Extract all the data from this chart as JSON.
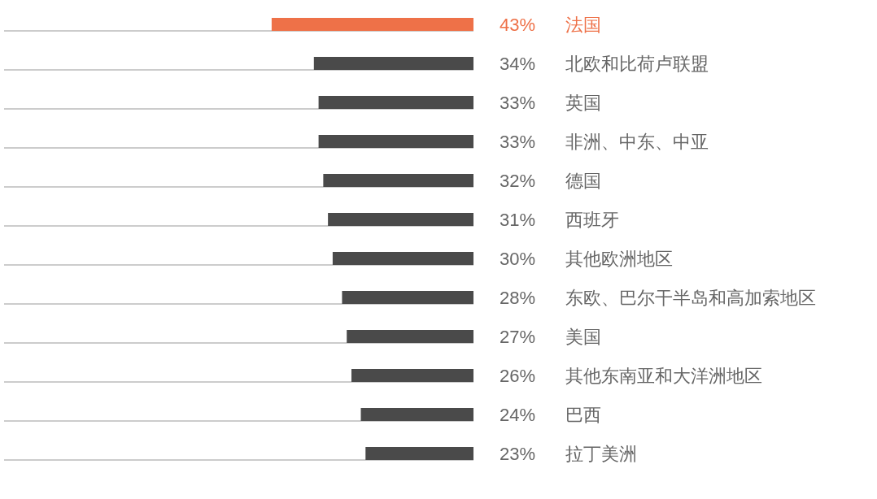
{
  "chart_data": {
    "type": "bar",
    "orientation": "horizontal",
    "categories": [
      "法国",
      "北欧和比荷卢联盟",
      "英国",
      "非洲、中东、中亚",
      "德国",
      "西班牙",
      "其他欧洲地区",
      "东欧、巴尔干半岛和高加索地区",
      "美国",
      "其他东南亚和大洋洲地区",
      "巴西",
      "拉丁美洲"
    ],
    "values": [
      43,
      34,
      33,
      33,
      32,
      31,
      30,
      28,
      27,
      26,
      24,
      23
    ],
    "colors": [
      "#ee7148",
      "#4a4a4a",
      "#4a4a4a",
      "#4a4a4a",
      "#4a4a4a",
      "#4a4a4a",
      "#4a4a4a",
      "#4a4a4a",
      "#4a4a4a",
      "#4a4a4a",
      "#4a4a4a",
      "#4a4a4a"
    ],
    "value_labels": [
      "43%",
      "34%",
      "33%",
      "33%",
      "32%",
      "31%",
      "30%",
      "28%",
      "27%",
      "26%",
      "24%",
      "23%"
    ],
    "xlim": [
      100,
      0
    ],
    "grid": "y",
    "tick_labels": "y"
  }
}
